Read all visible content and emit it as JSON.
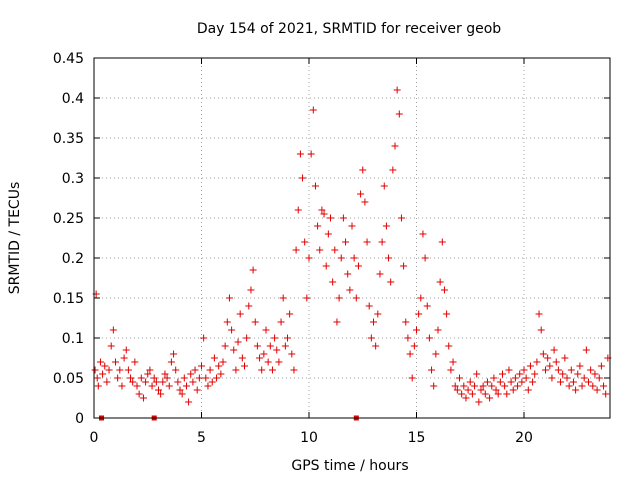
{
  "chart_data": {
    "type": "scatter",
    "title": "Day 154 of 2021, SRMTID for receiver geob",
    "xlabel": "GPS time / hours",
    "ylabel": "SRMTID / TECUs",
    "xlim": [
      0,
      24
    ],
    "ylim": [
      0,
      0.45
    ],
    "x_ticks": [
      0,
      5,
      10,
      15,
      20
    ],
    "x_tick_labels": [
      "0",
      "5",
      "10",
      "15",
      "20"
    ],
    "y_ticks": [
      0,
      0.05,
      0.1,
      0.15,
      0.2,
      0.25,
      0.3,
      0.35,
      0.4,
      0.45
    ],
    "y_tick_labels": [
      "0",
      "0.05",
      "0.1",
      "0.15",
      "0.2",
      "0.25",
      "0.3",
      "0.35",
      "0.4",
      "0.45"
    ],
    "grid": true,
    "marker": "+",
    "color": "#e00000",
    "series": [
      {
        "name": "SRMTID",
        "points": [
          [
            0.05,
            0.06
          ],
          [
            0.1,
            0.155
          ],
          [
            0.15,
            0.05
          ],
          [
            0.2,
            0.04
          ],
          [
            0.3,
            0.07
          ],
          [
            0.4,
            0.055
          ],
          [
            0.5,
            0.065
          ],
          [
            0.6,
            0.045
          ],
          [
            0.7,
            0.06
          ],
          [
            0.8,
            0.09
          ],
          [
            0.9,
            0.11
          ],
          [
            1.0,
            0.07
          ],
          [
            1.1,
            0.05
          ],
          [
            1.2,
            0.06
          ],
          [
            1.3,
            0.04
          ],
          [
            1.4,
            0.075
          ],
          [
            1.5,
            0.085
          ],
          [
            1.6,
            0.06
          ],
          [
            1.7,
            0.05
          ],
          [
            1.8,
            0.045
          ],
          [
            1.9,
            0.07
          ],
          [
            2.0,
            0.04
          ],
          [
            2.1,
            0.03
          ],
          [
            2.2,
            0.05
          ],
          [
            2.3,
            0.025
          ],
          [
            2.4,
            0.045
          ],
          [
            2.5,
            0.055
          ],
          [
            2.6,
            0.06
          ],
          [
            2.7,
            0.04
          ],
          [
            2.8,
            0.05
          ],
          [
            2.9,
            0.045
          ],
          [
            3.0,
            0.035
          ],
          [
            3.1,
            0.03
          ],
          [
            3.2,
            0.045
          ],
          [
            3.3,
            0.055
          ],
          [
            3.4,
            0.05
          ],
          [
            3.5,
            0.04
          ],
          [
            3.6,
            0.07
          ],
          [
            3.7,
            0.08
          ],
          [
            3.8,
            0.06
          ],
          [
            3.9,
            0.045
          ],
          [
            4.0,
            0.035
          ],
          [
            4.1,
            0.03
          ],
          [
            4.2,
            0.05
          ],
          [
            4.3,
            0.04
          ],
          [
            4.4,
            0.02
          ],
          [
            4.5,
            0.055
          ],
          [
            4.6,
            0.045
          ],
          [
            4.7,
            0.06
          ],
          [
            4.8,
            0.035
          ],
          [
            4.9,
            0.05
          ],
          [
            5.0,
            0.065
          ],
          [
            5.1,
            0.1
          ],
          [
            5.2,
            0.05
          ],
          [
            5.3,
            0.04
          ],
          [
            5.4,
            0.06
          ],
          [
            5.5,
            0.045
          ],
          [
            5.6,
            0.075
          ],
          [
            5.7,
            0.05
          ],
          [
            5.8,
            0.065
          ],
          [
            5.9,
            0.055
          ],
          [
            6.0,
            0.07
          ],
          [
            6.1,
            0.09
          ],
          [
            6.2,
            0.12
          ],
          [
            6.3,
            0.15
          ],
          [
            6.4,
            0.11
          ],
          [
            6.5,
            0.085
          ],
          [
            6.6,
            0.06
          ],
          [
            6.7,
            0.095
          ],
          [
            6.8,
            0.13
          ],
          [
            6.9,
            0.075
          ],
          [
            7.0,
            0.065
          ],
          [
            7.1,
            0.1
          ],
          [
            7.2,
            0.14
          ],
          [
            7.3,
            0.16
          ],
          [
            7.4,
            0.185
          ],
          [
            7.5,
            0.12
          ],
          [
            7.6,
            0.09
          ],
          [
            7.7,
            0.075
          ],
          [
            7.8,
            0.06
          ],
          [
            7.9,
            0.08
          ],
          [
            8.0,
            0.11
          ],
          [
            8.1,
            0.07
          ],
          [
            8.2,
            0.09
          ],
          [
            8.3,
            0.06
          ],
          [
            8.4,
            0.1
          ],
          [
            8.5,
            0.085
          ],
          [
            8.6,
            0.07
          ],
          [
            8.7,
            0.12
          ],
          [
            8.8,
            0.15
          ],
          [
            8.9,
            0.09
          ],
          [
            9.0,
            0.1
          ],
          [
            9.1,
            0.13
          ],
          [
            9.2,
            0.08
          ],
          [
            9.3,
            0.06
          ],
          [
            9.4,
            0.21
          ],
          [
            9.5,
            0.26
          ],
          [
            9.6,
            0.33
          ],
          [
            9.7,
            0.3
          ],
          [
            9.8,
            0.22
          ],
          [
            9.9,
            0.15
          ],
          [
            10.0,
            0.2
          ],
          [
            10.1,
            0.33
          ],
          [
            10.2,
            0.385
          ],
          [
            10.3,
            0.29
          ],
          [
            10.4,
            0.24
          ],
          [
            10.5,
            0.21
          ],
          [
            10.6,
            0.26
          ],
          [
            10.7,
            0.255
          ],
          [
            10.8,
            0.19
          ],
          [
            10.9,
            0.23
          ],
          [
            11.0,
            0.25
          ],
          [
            11.1,
            0.17
          ],
          [
            11.2,
            0.21
          ],
          [
            11.3,
            0.12
          ],
          [
            11.4,
            0.15
          ],
          [
            11.5,
            0.2
          ],
          [
            11.6,
            0.25
          ],
          [
            11.7,
            0.22
          ],
          [
            11.8,
            0.18
          ],
          [
            11.9,
            0.16
          ],
          [
            12.0,
            0.24
          ],
          [
            12.1,
            0.2
          ],
          [
            12.2,
            0.15
          ],
          [
            12.3,
            0.19
          ],
          [
            12.4,
            0.28
          ],
          [
            12.5,
            0.31
          ],
          [
            12.6,
            0.27
          ],
          [
            12.7,
            0.22
          ],
          [
            12.8,
            0.14
          ],
          [
            12.9,
            0.1
          ],
          [
            13.0,
            0.12
          ],
          [
            13.1,
            0.09
          ],
          [
            13.2,
            0.13
          ],
          [
            13.3,
            0.18
          ],
          [
            13.4,
            0.22
          ],
          [
            13.5,
            0.29
          ],
          [
            13.6,
            0.24
          ],
          [
            13.7,
            0.2
          ],
          [
            13.8,
            0.17
          ],
          [
            13.9,
            0.31
          ],
          [
            14.0,
            0.34
          ],
          [
            14.1,
            0.41
          ],
          [
            14.2,
            0.38
          ],
          [
            14.3,
            0.25
          ],
          [
            14.4,
            0.19
          ],
          [
            14.5,
            0.12
          ],
          [
            14.6,
            0.1
          ],
          [
            14.7,
            0.08
          ],
          [
            14.8,
            0.05
          ],
          [
            14.9,
            0.09
          ],
          [
            15.0,
            0.11
          ],
          [
            15.1,
            0.13
          ],
          [
            15.2,
            0.15
          ],
          [
            15.3,
            0.23
          ],
          [
            15.4,
            0.2
          ],
          [
            15.5,
            0.14
          ],
          [
            15.6,
            0.1
          ],
          [
            15.7,
            0.06
          ],
          [
            15.8,
            0.04
          ],
          [
            15.9,
            0.08
          ],
          [
            16.0,
            0.11
          ],
          [
            16.1,
            0.17
          ],
          [
            16.2,
            0.22
          ],
          [
            16.3,
            0.16
          ],
          [
            16.4,
            0.13
          ],
          [
            16.5,
            0.09
          ],
          [
            16.6,
            0.06
          ],
          [
            16.7,
            0.07
          ],
          [
            16.8,
            0.04
          ],
          [
            16.9,
            0.035
          ],
          [
            17.0,
            0.05
          ],
          [
            17.1,
            0.03
          ],
          [
            17.2,
            0.04
          ],
          [
            17.3,
            0.025
          ],
          [
            17.4,
            0.035
          ],
          [
            17.5,
            0.045
          ],
          [
            17.6,
            0.03
          ],
          [
            17.7,
            0.04
          ],
          [
            17.8,
            0.055
          ],
          [
            17.9,
            0.02
          ],
          [
            18.0,
            0.035
          ],
          [
            18.1,
            0.04
          ],
          [
            18.2,
            0.03
          ],
          [
            18.3,
            0.045
          ],
          [
            18.4,
            0.025
          ],
          [
            18.5,
            0.04
          ],
          [
            18.6,
            0.05
          ],
          [
            18.7,
            0.035
          ],
          [
            18.8,
            0.03
          ],
          [
            18.9,
            0.045
          ],
          [
            19.0,
            0.055
          ],
          [
            19.1,
            0.04
          ],
          [
            19.2,
            0.03
          ],
          [
            19.3,
            0.06
          ],
          [
            19.4,
            0.045
          ],
          [
            19.5,
            0.035
          ],
          [
            19.6,
            0.05
          ],
          [
            19.7,
            0.04
          ],
          [
            19.8,
            0.055
          ],
          [
            19.9,
            0.045
          ],
          [
            20.0,
            0.06
          ],
          [
            20.1,
            0.05
          ],
          [
            20.2,
            0.035
          ],
          [
            20.3,
            0.065
          ],
          [
            20.4,
            0.045
          ],
          [
            20.5,
            0.055
          ],
          [
            20.6,
            0.07
          ],
          [
            20.7,
            0.13
          ],
          [
            20.8,
            0.11
          ],
          [
            20.9,
            0.08
          ],
          [
            21.0,
            0.06
          ],
          [
            21.1,
            0.075
          ],
          [
            21.2,
            0.065
          ],
          [
            21.3,
            0.05
          ],
          [
            21.4,
            0.085
          ],
          [
            21.5,
            0.07
          ],
          [
            21.6,
            0.06
          ],
          [
            21.7,
            0.045
          ],
          [
            21.8,
            0.055
          ],
          [
            21.9,
            0.075
          ],
          [
            22.0,
            0.05
          ],
          [
            22.1,
            0.04
          ],
          [
            22.2,
            0.06
          ],
          [
            22.3,
            0.045
          ],
          [
            22.4,
            0.035
          ],
          [
            22.5,
            0.055
          ],
          [
            22.6,
            0.065
          ],
          [
            22.7,
            0.04
          ],
          [
            22.8,
            0.05
          ],
          [
            22.9,
            0.085
          ],
          [
            23.0,
            0.045
          ],
          [
            23.1,
            0.06
          ],
          [
            23.2,
            0.04
          ],
          [
            23.3,
            0.055
          ],
          [
            23.4,
            0.035
          ],
          [
            23.5,
            0.05
          ],
          [
            23.6,
            0.065
          ],
          [
            23.7,
            0.04
          ],
          [
            23.8,
            0.03
          ],
          [
            23.9,
            0.075
          ]
        ]
      }
    ],
    "axis_markers": [
      {
        "name": "gap-marker",
        "x": 0.35,
        "y": 0
      },
      {
        "name": "gap-marker",
        "x": 2.8,
        "y": 0
      },
      {
        "name": "gap-marker",
        "x": 12.2,
        "y": 0
      }
    ]
  }
}
